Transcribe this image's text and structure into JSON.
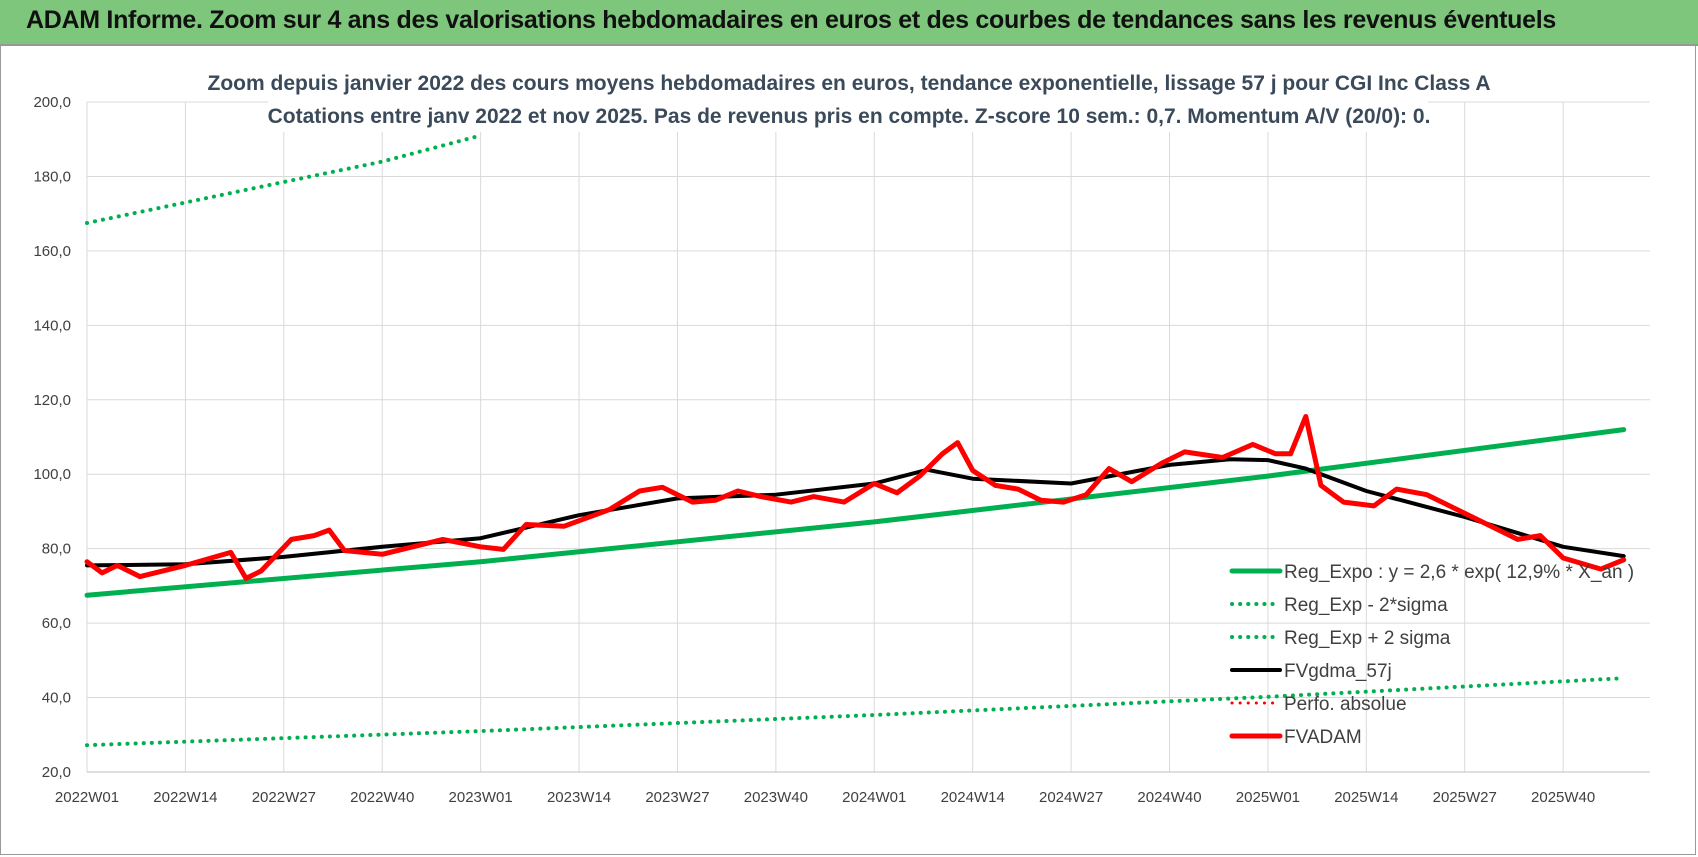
{
  "banner": {
    "title": "ADAM Informe. Zoom sur 4 ans des valorisations hebdomadaires en euros et des courbes de tendances sans les revenus éventuels",
    "color": "#7dc67b"
  },
  "chart_data": {
    "type": "line",
    "title": "Zoom depuis janvier 2022 des cours moyens hebdomadaires en euros, tendance exponentielle, lissage 57 j pour CGI Inc Class A",
    "subtitle": "Cotations entre janv 2022 et nov 2025. Pas de revenus pris en compte. Z-score 10 sem.: 0,7. Momentum A/V (20/0): 0.",
    "xlabel": "",
    "ylabel": "",
    "ylim": [
      20,
      200
    ],
    "yticks": [
      "200,0",
      "180,0",
      "160,0",
      "140,0",
      "120,0",
      "100,0",
      "80,0",
      "60,0",
      "40,0",
      "20,0"
    ],
    "xticks": [
      "2022W01",
      "2022W14",
      "2022W27",
      "2022W40",
      "2023W01",
      "2023W14",
      "2023W27",
      "2023W40",
      "2024W01",
      "2024W14",
      "2024W27",
      "2024W40",
      "2025W01",
      "2025W14",
      "2025W27",
      "2025W40"
    ],
    "grid": true,
    "legend_position": "bottom-right",
    "series": [
      {
        "name": "Reg_Expo : y = 2,6 * exp( 12,9% * X_an )",
        "style": "solid",
        "color": "#00b050",
        "x": [
          "2022W01",
          "2023W01",
          "2024W01",
          "2025W01",
          "2025W48"
        ],
        "values": [
          67.5,
          76.5,
          87.2,
          99.5,
          112
        ]
      },
      {
        "name": "Reg_Exp - 2*sigma",
        "style": "dotted",
        "color": "#00b050",
        "x": [
          "2022W01",
          "2023W01",
          "2024W01",
          "2025W01",
          "2025W48"
        ],
        "values": [
          27.2,
          31,
          35.3,
          40.2,
          45.2
        ]
      },
      {
        "name": "Reg_Exp + 2 sigma",
        "style": "dotted",
        "color": "#00b050",
        "x": [
          "2022W01",
          "2022W27",
          "2022W40",
          "2023W01"
        ],
        "values": [
          167.5,
          178.5,
          184,
          191
        ]
      },
      {
        "name": "FVgdma_57j",
        "style": "solid",
        "color": "#000000",
        "x": [
          "2022W01",
          "2022W14",
          "2022W27",
          "2022W40",
          "2023W01",
          "2023W14",
          "2023W27",
          "2023W40",
          "2024W01",
          "2024W08",
          "2024W14",
          "2024W27",
          "2024W40",
          "2024W48",
          "2025W01",
          "2025W06",
          "2025W14",
          "2025W27",
          "2025W40",
          "2025W48"
        ],
        "values": [
          75.5,
          75.8,
          77.8,
          80.5,
          82.8,
          89,
          93.5,
          94.5,
          97.5,
          101.2,
          98.8,
          97.5,
          102.5,
          104,
          103.8,
          101.5,
          95.5,
          88.5,
          80.5,
          78
        ]
      },
      {
        "name": "Perfo. absolue",
        "style": "dotted",
        "color": "#ff0000",
        "x": [],
        "values": []
      },
      {
        "name": "FVADAM",
        "style": "solid",
        "color": "#ff0000",
        "x": [
          "2022W01",
          "2022W03",
          "2022W05",
          "2022W08",
          "2022W14",
          "2022W20",
          "2022W22",
          "2022W24",
          "2022W28",
          "2022W31",
          "2022W33",
          "2022W35",
          "2022W40",
          "2022W48",
          "2023W01",
          "2023W04",
          "2023W07",
          "2023W12",
          "2023W18",
          "2023W22",
          "2023W25",
          "2023W29",
          "2023W32",
          "2023W35",
          "2023W38",
          "2023W42",
          "2023W45",
          "2023W49",
          "2024W01",
          "2024W04",
          "2024W07",
          "2024W10",
          "2024W12",
          "2024W14",
          "2024W17",
          "2024W20",
          "2024W23",
          "2024W26",
          "2024W29",
          "2024W32",
          "2024W35",
          "2024W39",
          "2024W42",
          "2024W47",
          "2024W51",
          "2025W02",
          "2025W04",
          "2025W06",
          "2025W08",
          "2025W11",
          "2025W15",
          "2025W18",
          "2025W22",
          "2025W26",
          "2025W30",
          "2025W34",
          "2025W37",
          "2025W40",
          "2025W45",
          "2025W48"
        ],
        "values": [
          76.5,
          73.5,
          75.5,
          72.5,
          75.5,
          79,
          72,
          74,
          82.5,
          83.5,
          85,
          79.5,
          78.5,
          82.5,
          80.5,
          79.8,
          86.5,
          86,
          90.5,
          95.5,
          96.5,
          92.5,
          93,
          95.5,
          94,
          92.5,
          94,
          92.5,
          97.5,
          95,
          99.5,
          105.5,
          108.5,
          101,
          97,
          96,
          93,
          92.5,
          94.5,
          101.5,
          98,
          103,
          106,
          104.5,
          108,
          105.5,
          105.5,
          115.5,
          97,
          92.5,
          91.5,
          96,
          94.5,
          90.5,
          86.5,
          82.5,
          83.5,
          77.5,
          74.5,
          77
        ]
      }
    ]
  }
}
